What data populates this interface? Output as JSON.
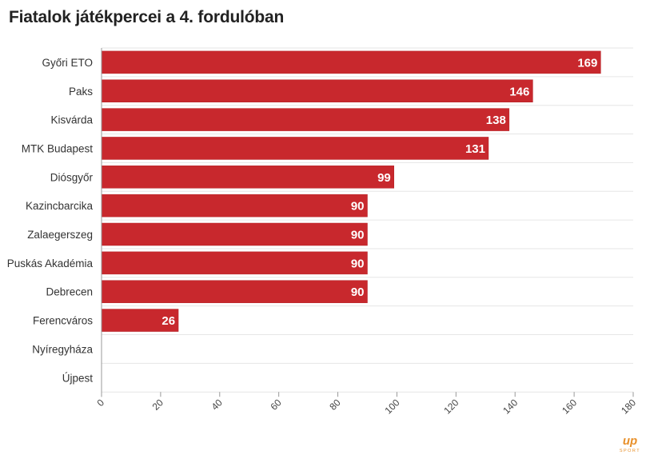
{
  "chart_data": {
    "type": "bar",
    "orientation": "horizontal",
    "title": "Fiatalok játékpercei a 4. fordulóban",
    "categories": [
      "Győri ETO",
      "Paks",
      "Kisvárda",
      "MTK Budapest",
      "Diósgyőr",
      "Kazincbarcika",
      "Zalaegerszeg",
      "Puskás Akadémia",
      "Debrecen",
      "Ferencváros",
      "Nyíregyháza",
      "Újpest"
    ],
    "values": [
      169,
      146,
      138,
      131,
      99,
      90,
      90,
      90,
      90,
      26,
      0,
      0
    ],
    "value_labels": [
      "169",
      "146",
      "138",
      "131",
      "99",
      "90",
      "90",
      "90",
      "90",
      "26",
      "",
      ""
    ],
    "xlim": [
      0,
      180
    ],
    "xticks": [
      0,
      20,
      40,
      60,
      80,
      100,
      120,
      140,
      160,
      180
    ],
    "xlabel": "",
    "ylabel": "",
    "grid": true,
    "legend": "none",
    "colors": {
      "bar": "#c8282d",
      "bar_edge": "#b52227",
      "grid": "#e6e6e6",
      "axis": "#999999"
    }
  },
  "branding": {
    "logo_text": "up",
    "logo_subtext": "SPORT",
    "color": "#e8902a"
  }
}
